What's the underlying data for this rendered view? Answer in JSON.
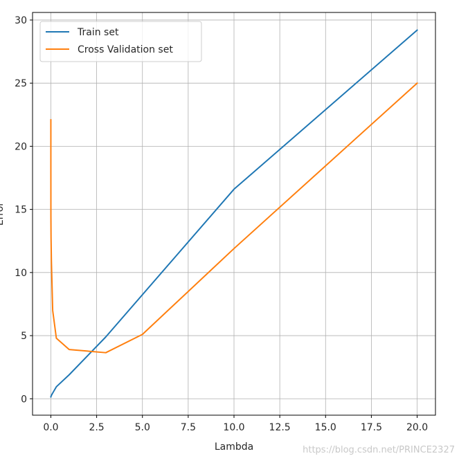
{
  "chart_data": {
    "type": "line",
    "title": "",
    "xlabel": "Lambda",
    "ylabel": "Error",
    "xlim": [
      -1.0,
      21.0
    ],
    "ylim": [
      -1.3,
      30.6
    ],
    "xticks": [
      0.0,
      2.5,
      5.0,
      7.5,
      10.0,
      12.5,
      15.0,
      17.5,
      20.0
    ],
    "xtick_labels": [
      "0.0",
      "2.5",
      "5.0",
      "7.5",
      "10.0",
      "12.5",
      "15.0",
      "17.5",
      "20.0"
    ],
    "yticks": [
      0,
      5,
      10,
      15,
      20,
      25,
      30
    ],
    "ytick_labels": [
      "0",
      "5",
      "10",
      "15",
      "20",
      "25",
      "30"
    ],
    "grid": true,
    "legend_placement": "top-left",
    "series": [
      {
        "name": "Train set",
        "color": "#1f77b4",
        "x": [
          0,
          0.001,
          0.003,
          0.01,
          0.03,
          0.1,
          0.3,
          1,
          3,
          10,
          20
        ],
        "y": [
          0.15,
          0.16,
          0.17,
          0.2,
          0.27,
          0.45,
          0.95,
          1.9,
          4.9,
          16.6,
          29.2
        ]
      },
      {
        "name": "Cross Validation set",
        "color": "#ff7f0e",
        "x": [
          0,
          0.001,
          0.003,
          0.01,
          0.03,
          0.1,
          0.3,
          1,
          3,
          5,
          10,
          20
        ],
        "y": [
          22.1,
          17.5,
          14.5,
          12.8,
          10.9,
          7.0,
          4.8,
          3.9,
          3.65,
          5.1,
          11.9,
          25.0
        ]
      }
    ]
  },
  "watermark": "https://blog.csdn.net/PRINCE2327"
}
